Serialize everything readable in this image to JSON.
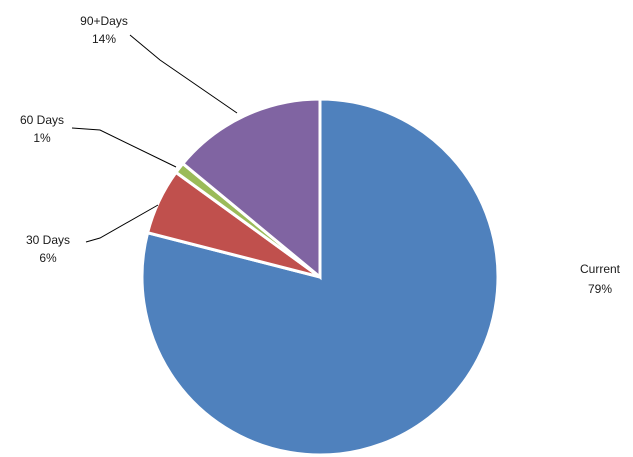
{
  "chart_data": {
    "type": "pie",
    "title": "",
    "slices": [
      {
        "name": "Current",
        "value": 79,
        "label": "Current",
        "pct_label": "79%",
        "color": "#4F81BD"
      },
      {
        "name": "30 Days",
        "value": 6,
        "label": "30 Days",
        "pct_label": "6%",
        "color": "#C0504D"
      },
      {
        "name": "60 Days",
        "value": 1,
        "label": "60 Days",
        "pct_label": "1%",
        "color": "#9BBB59"
      },
      {
        "name": "90+Days",
        "value": 14,
        "label": "90+Days",
        "pct_label": "14%",
        "color": "#8064A2"
      }
    ],
    "legend": "none",
    "labels": "outside with leader lines"
  }
}
